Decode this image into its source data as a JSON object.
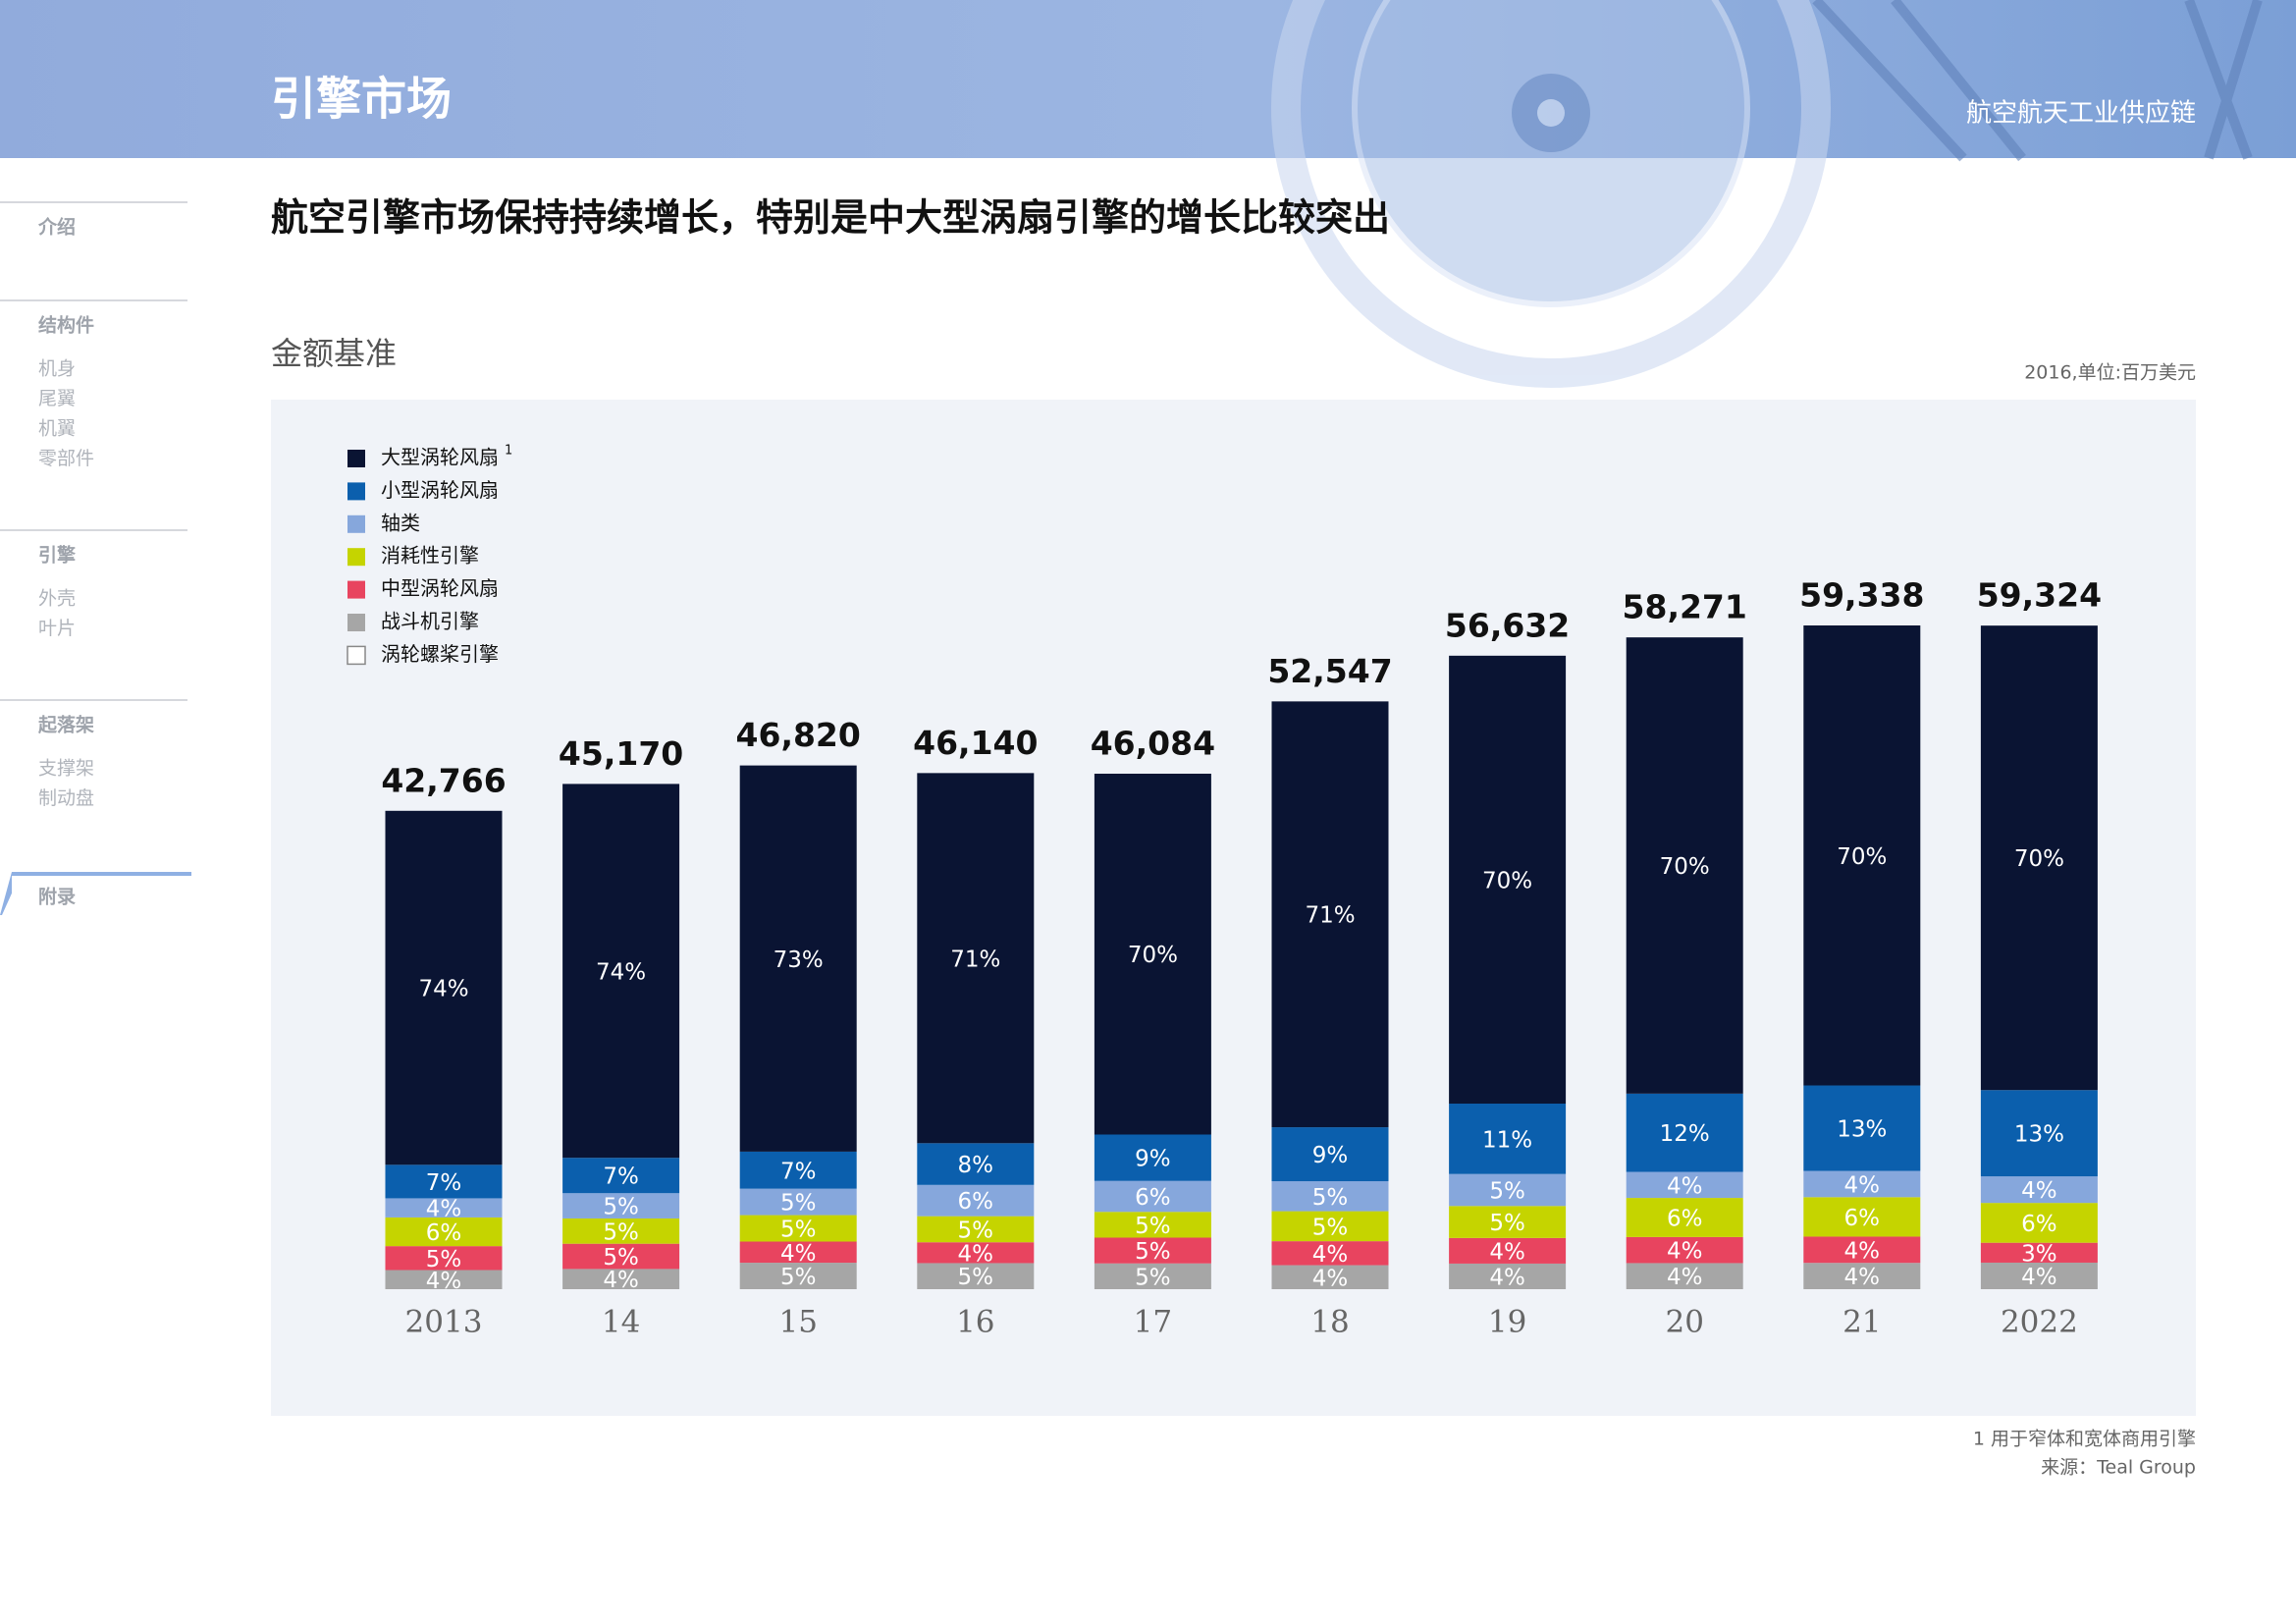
{
  "header": {
    "title": "引擎市场",
    "subtitle": "航空航天工业供应链"
  },
  "sidebar": [
    {
      "heading": "介绍",
      "items": []
    },
    {
      "heading": "结构件",
      "items": [
        "机身",
        "尾翼",
        "机翼",
        "零部件"
      ]
    },
    {
      "heading": "引擎",
      "items": [
        "外壳",
        "叶片"
      ]
    },
    {
      "heading": "起落架",
      "items": [
        "支撑架",
        "制动盘"
      ]
    },
    {
      "heading": "附录",
      "items": []
    }
  ],
  "headline": "航空引擎市场保持持续增长，特别是中大型涡扇引擎的增长比较突出",
  "chart_data": {
    "type": "stacked_bar",
    "title": "金额基准",
    "unit_note": "2016,单位:百万美元",
    "legend_note": "1",
    "categories": [
      "2013",
      "14",
      "15",
      "16",
      "17",
      "18",
      "19",
      "20",
      "21",
      "2022"
    ],
    "totals": {
      "values": [
        42766,
        45170,
        46820,
        46140,
        46084,
        52547,
        56632,
        58271,
        59338,
        59324
      ],
      "value_labels": [
        "42,766",
        "45,170",
        "46,820",
        "46,140",
        "46,084",
        "52,547",
        "56,632",
        "58,271",
        "59,338",
        "59,324"
      ]
    },
    "series": [
      {
        "name": "大型涡轮风扇",
        "color": "#0a1433",
        "values": [
          74,
          74,
          73,
          71,
          70,
          71,
          70,
          70,
          70,
          70
        ],
        "value_labels": [
          "74%",
          "74%",
          "73%",
          "71%",
          "70%",
          "71%",
          "70%",
          "70%",
          "70%",
          "70%"
        ]
      },
      {
        "name": "小型涡轮风扇",
        "color": "#0b5fad",
        "values": [
          7,
          7,
          7,
          8,
          9,
          9,
          11,
          12,
          13,
          13
        ],
        "value_labels": [
          "7%",
          "7%",
          "7%",
          "8%",
          "9%",
          "9%",
          "11%",
          "12%",
          "13%",
          "13%"
        ]
      },
      {
        "name": "轴类",
        "color": "#86a7dc",
        "values": [
          4,
          5,
          5,
          6,
          6,
          5,
          5,
          4,
          4,
          4
        ],
        "value_labels": [
          "4%",
          "5%",
          "5%",
          "6%",
          "6%",
          "5%",
          "5%",
          "4%",
          "4%",
          "4%"
        ]
      },
      {
        "name": "消耗性引擎",
        "color": "#c5d400",
        "values": [
          6,
          5,
          5,
          5,
          5,
          5,
          5,
          6,
          6,
          6
        ],
        "value_labels": [
          "6%",
          "5%",
          "5%",
          "5%",
          "5%",
          "5%",
          "5%",
          "6%",
          "6%",
          "6%"
        ]
      },
      {
        "name": "中型涡轮风扇",
        "color": "#e8445f",
        "values": [
          5,
          5,
          4,
          4,
          5,
          4,
          4,
          4,
          4,
          3
        ],
        "value_labels": [
          "5%",
          "5%",
          "4%",
          "4%",
          "5%",
          "4%",
          "4%",
          "4%",
          "4%",
          "3%"
        ]
      },
      {
        "name": "战斗机引擎",
        "color": "#a6a6a6",
        "values": [
          4,
          4,
          5,
          5,
          5,
          4,
          4,
          4,
          4,
          4
        ],
        "value_labels": [
          "4%",
          "4%",
          "5%",
          "5%",
          "5%",
          "4%",
          "4%",
          "4%",
          "4%",
          "4%"
        ]
      },
      {
        "name": "涡轮螺桨引擎",
        "color": "#ffffff",
        "values": [
          null,
          null,
          null,
          null,
          null,
          null,
          null,
          null,
          null,
          null
        ]
      }
    ]
  },
  "footer": {
    "note": "1 用于窄体和宽体商用引擎",
    "source": "来源：Teal Group"
  }
}
